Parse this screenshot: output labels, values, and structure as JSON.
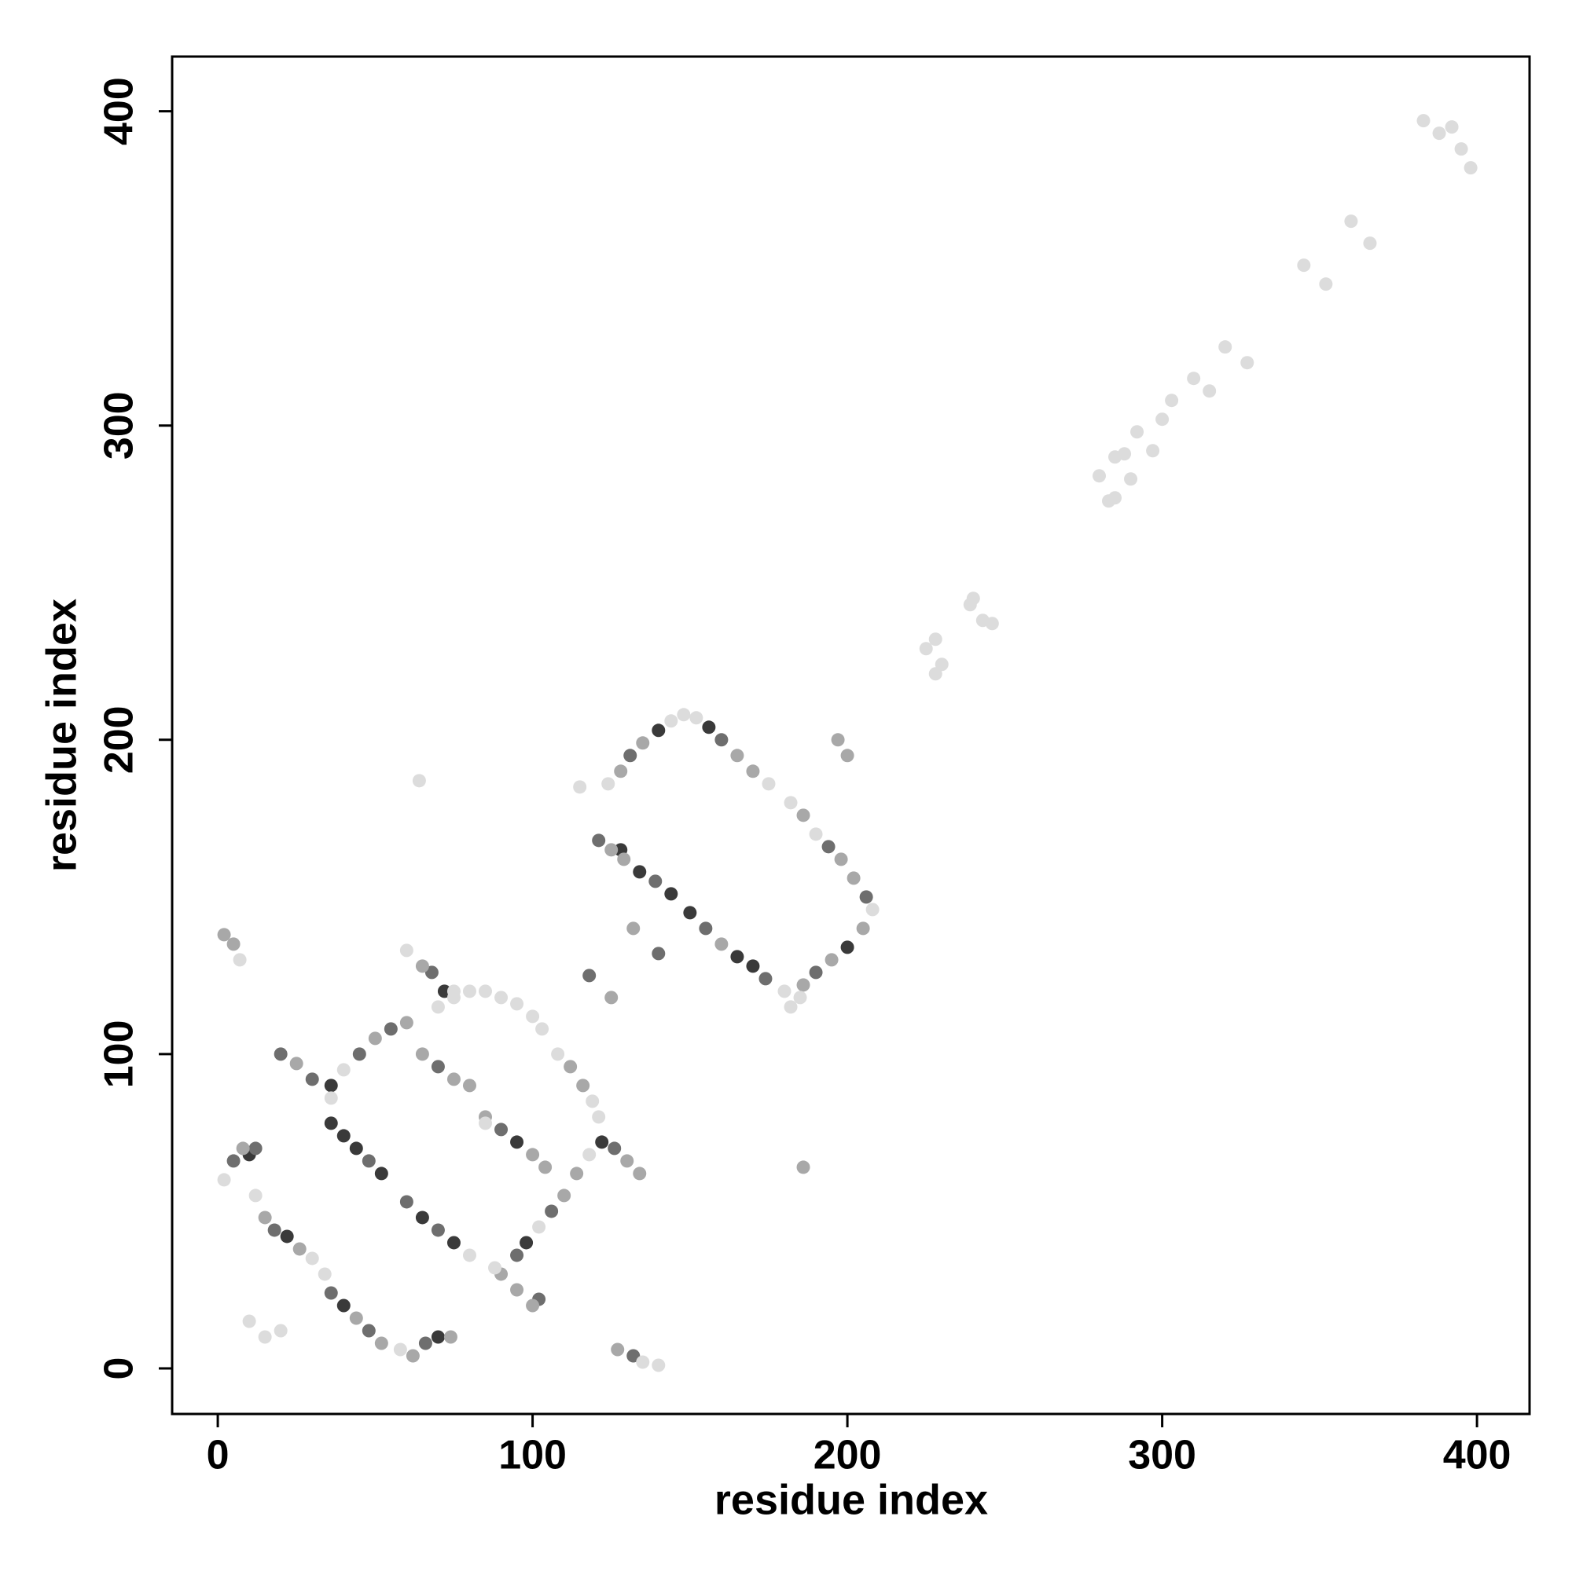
{
  "chart_data": {
    "type": "scatter",
    "xlabel": "residue index",
    "ylabel": "residue index",
    "xlim": [
      -14.5,
      416.7
    ],
    "ylim": [
      -14.5,
      417.4
    ],
    "xticks": [
      0,
      100,
      200,
      300,
      400
    ],
    "yticks": [
      0,
      100,
      200,
      300,
      400
    ],
    "grid": false,
    "series": [
      {
        "color": "#3a3a3a",
        "x": [
          128,
          134,
          144,
          165,
          170,
          200,
          36,
          44,
          52,
          65,
          75,
          10,
          22,
          40,
          70,
          98,
          122,
          150,
          140,
          156,
          36,
          72,
          40,
          95
        ],
        "values": [
          165,
          158,
          151,
          131,
          128,
          134,
          78,
          70,
          62,
          48,
          40,
          68,
          42,
          20,
          10,
          40,
          72,
          145,
          203,
          204,
          90,
          120,
          74,
          72
        ]
      },
      {
        "color": "#6e6e6e",
        "x": [
          131,
          160,
          121,
          139,
          155,
          174,
          194,
          206,
          190,
          20,
          30,
          45,
          55,
          48,
          60,
          70,
          70,
          90,
          5,
          18,
          36,
          48,
          66,
          95,
          106,
          126,
          132,
          118,
          140,
          68,
          102,
          12
        ],
        "values": [
          195,
          200,
          168,
          155,
          140,
          124,
          166,
          150,
          126,
          100,
          92,
          100,
          108,
          66,
          53,
          44,
          96,
          76,
          66,
          44,
          24,
          12,
          8,
          36,
          50,
          70,
          4,
          125,
          132,
          126,
          22,
          70
        ]
      },
      {
        "color": "#a8a8a8",
        "x": [
          128,
          135,
          165,
          170,
          125,
          129,
          160,
          186,
          198,
          202,
          205,
          195,
          25,
          50,
          60,
          65,
          75,
          85,
          100,
          104,
          112,
          116,
          110,
          114,
          130,
          134,
          8,
          15,
          26,
          44,
          62,
          74,
          127,
          5,
          65,
          95,
          100,
          186,
          186,
          200,
          197,
          125,
          132,
          52,
          90,
          80,
          2
        ],
        "values": [
          190,
          199,
          195,
          190,
          165,
          162,
          135,
          176,
          162,
          156,
          140,
          130,
          97,
          105,
          110,
          100,
          92,
          80,
          68,
          64,
          96,
          90,
          55,
          62,
          66,
          62,
          70,
          48,
          38,
          16,
          4,
          10,
          6,
          135,
          128,
          25,
          20,
          122,
          64,
          195,
          200,
          118,
          140,
          8,
          30,
          90,
          138
        ]
      },
      {
        "color": "#dcdcdc",
        "x": [
          383,
          388,
          392,
          395,
          398,
          360,
          366,
          345,
          352,
          320,
          327,
          310,
          303,
          315,
          300,
          292,
          297,
          280,
          285,
          288,
          290,
          285,
          283,
          225,
          228,
          230,
          228,
          239,
          240,
          246,
          243,
          115,
          124,
          144,
          148,
          152,
          175,
          182,
          190,
          208,
          182,
          185,
          180,
          70,
          75,
          80,
          85,
          90,
          95,
          100,
          103,
          108,
          119,
          121,
          102,
          118,
          2,
          12,
          30,
          34,
          58,
          135,
          140,
          7,
          60,
          75,
          10,
          15,
          20,
          64,
          88,
          85,
          40,
          36,
          80
        ],
        "values": [
          397,
          393,
          395,
          388,
          382,
          365,
          358,
          351,
          345,
          325,
          320,
          315,
          308,
          311,
          302,
          298,
          292,
          284,
          290,
          291,
          283,
          277,
          276,
          229,
          232,
          224,
          221,
          243,
          245,
          237,
          238,
          185,
          186,
          206,
          208,
          207,
          186,
          180,
          170,
          146,
          115,
          118,
          120,
          115,
          118,
          120,
          120,
          118,
          116,
          112,
          108,
          100,
          85,
          80,
          45,
          68,
          60,
          55,
          35,
          30,
          6,
          2,
          1,
          130,
          133,
          120,
          15,
          10,
          12,
          187,
          32,
          78,
          95,
          86,
          36
        ]
      }
    ]
  }
}
